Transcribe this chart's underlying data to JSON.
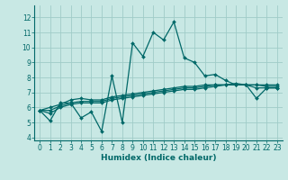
{
  "xlabel": "Humidex (Indice chaleur)",
  "xlim": [
    -0.5,
    23.5
  ],
  "ylim": [
    3.8,
    12.8
  ],
  "yticks": [
    4,
    5,
    6,
    7,
    8,
    9,
    10,
    11,
    12
  ],
  "xticks": [
    0,
    1,
    2,
    3,
    4,
    5,
    6,
    7,
    8,
    9,
    10,
    11,
    12,
    13,
    14,
    15,
    16,
    17,
    18,
    19,
    20,
    21,
    22,
    23
  ],
  "background_color": "#c8e8e4",
  "grid_color": "#a0ccc8",
  "line_color": "#006868",
  "lines": [
    {
      "x": [
        0,
        1,
        2,
        3,
        4,
        5,
        6,
        7,
        8,
        9,
        10,
        11,
        12,
        13,
        14,
        15,
        16,
        17,
        18,
        19,
        20,
        21,
        22,
        23
      ],
      "y": [
        5.8,
        5.1,
        6.3,
        6.3,
        5.3,
        5.7,
        4.4,
        8.1,
        5.0,
        10.3,
        9.4,
        11.0,
        10.5,
        11.7,
        9.3,
        9.0,
        8.1,
        8.2,
        7.8,
        7.5,
        7.5,
        6.6,
        7.3,
        7.3
      ]
    },
    {
      "x": [
        0,
        1,
        2,
        3,
        4,
        5,
        6,
        7,
        8,
        9,
        10,
        11,
        12,
        13,
        14,
        15,
        16,
        17,
        18,
        19,
        20,
        21,
        22,
        23
      ],
      "y": [
        5.8,
        5.6,
        6.0,
        6.2,
        6.3,
        6.3,
        6.3,
        6.5,
        6.6,
        6.7,
        6.8,
        6.9,
        7.0,
        7.1,
        7.2,
        7.2,
        7.3,
        7.4,
        7.5,
        7.5,
        7.5,
        7.3,
        7.3,
        7.3
      ]
    },
    {
      "x": [
        0,
        1,
        2,
        3,
        4,
        5,
        6,
        7,
        8,
        9,
        10,
        11,
        12,
        13,
        14,
        15,
        16,
        17,
        18,
        19,
        20,
        21,
        22,
        23
      ],
      "y": [
        5.8,
        5.8,
        6.1,
        6.3,
        6.4,
        6.4,
        6.4,
        6.6,
        6.7,
        6.8,
        6.9,
        7.0,
        7.1,
        7.2,
        7.3,
        7.3,
        7.4,
        7.5,
        7.5,
        7.5,
        7.5,
        7.5,
        7.4,
        7.4
      ]
    },
    {
      "x": [
        0,
        1,
        2,
        3,
        4,
        5,
        6,
        7,
        8,
        9,
        10,
        11,
        12,
        13,
        14,
        15,
        16,
        17,
        18,
        19,
        20,
        21,
        22,
        23
      ],
      "y": [
        5.8,
        6.0,
        6.2,
        6.5,
        6.6,
        6.5,
        6.5,
        6.7,
        6.8,
        6.9,
        7.0,
        7.1,
        7.2,
        7.3,
        7.4,
        7.4,
        7.5,
        7.5,
        7.5,
        7.6,
        7.5,
        7.5,
        7.5,
        7.5
      ]
    }
  ],
  "marker": "D",
  "markersize": 2.0,
  "linewidth": 0.9,
  "tick_fontsize": 5.5,
  "label_fontsize": 6.5
}
